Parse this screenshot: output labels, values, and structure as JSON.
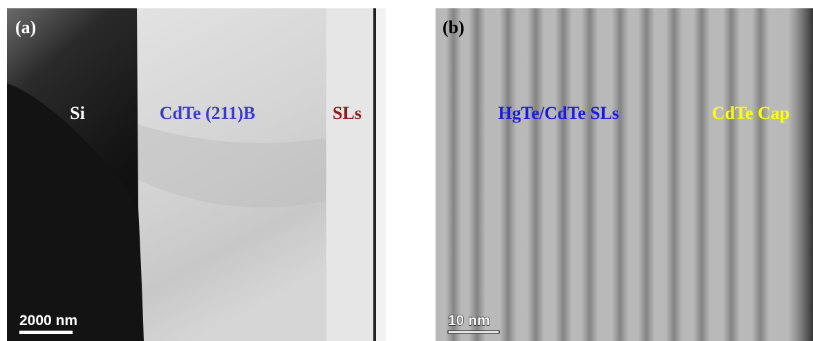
{
  "panels": [
    {
      "label": "(a)",
      "annotations": [
        "Si",
        "CdTe (211)B",
        "SLs"
      ],
      "scale_bar": "2000 nm"
    },
    {
      "label": "(b)",
      "annotations": [
        "HgTe/CdTe SLs",
        "CdTe Cap"
      ],
      "scale_bar": "10 nm"
    }
  ]
}
